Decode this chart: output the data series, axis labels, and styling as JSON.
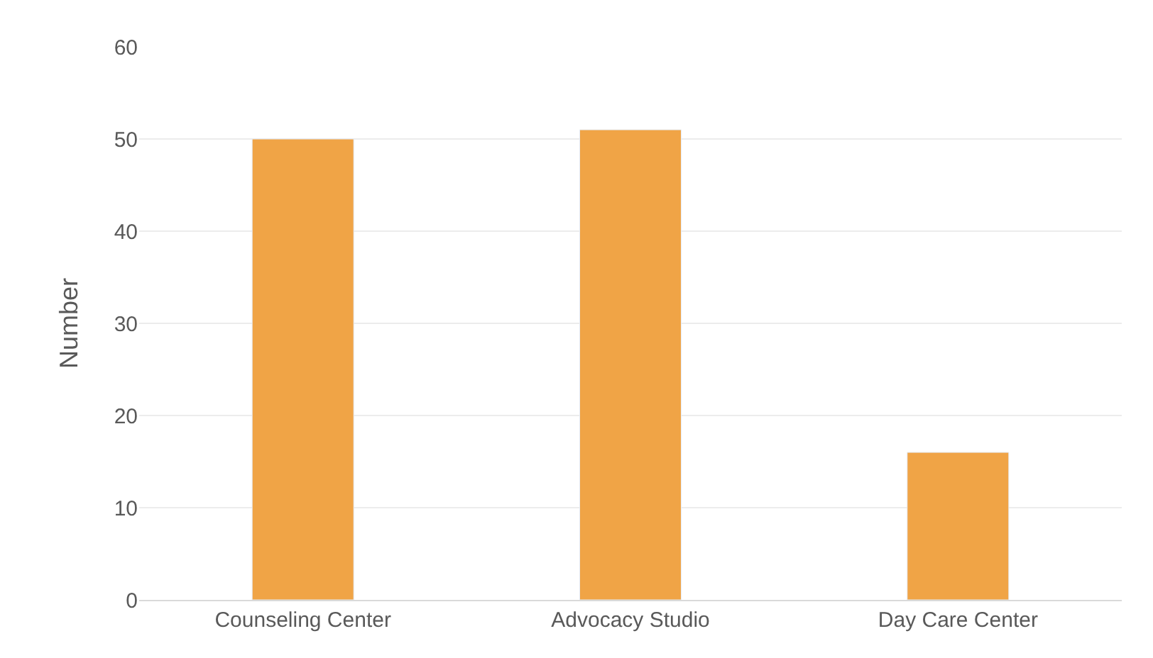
{
  "chart_data": {
    "type": "bar",
    "ylabel": "Number",
    "categories": [
      "Counseling Center",
      "Advocacy Studio",
      "Day Care Center"
    ],
    "values": [
      50,
      51,
      16
    ],
    "color": "#f0a446",
    "ylim": [
      0,
      60
    ],
    "yticks": [
      0,
      10,
      20,
      30,
      40,
      50,
      60
    ],
    "grid": "y",
    "legend": false
  }
}
